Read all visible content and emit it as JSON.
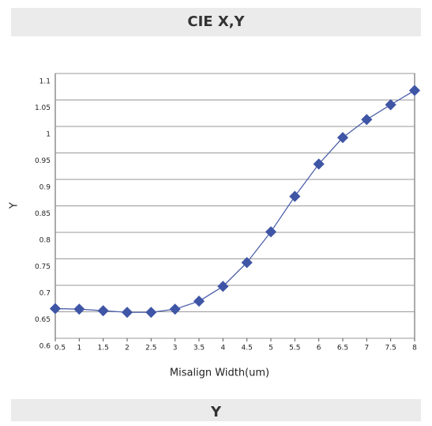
{
  "header": {
    "title": "CIE X,Y"
  },
  "chart_data": {
    "type": "line",
    "x_label": "Misalign Width(um)",
    "y_label": "Y",
    "x": [
      0.5,
      1,
      1.5,
      2,
      2.5,
      3,
      3.5,
      4,
      4.5,
      5,
      5.5,
      6,
      6.5,
      7,
      7.5,
      8
    ],
    "series": [
      {
        "name": "Y",
        "color": "#3f55a6",
        "values": [
          0.656,
          0.655,
          0.652,
          0.649,
          0.649,
          0.655,
          0.67,
          0.698,
          0.743,
          0.801,
          0.868,
          0.929,
          0.979,
          1.013,
          1.041,
          1.068
        ]
      }
    ],
    "xlim": [
      0.5,
      8
    ],
    "xticks": [
      0.5,
      1,
      1.5,
      2,
      2.5,
      3,
      3.5,
      4,
      4.5,
      5,
      5.5,
      6,
      6.5,
      7,
      7.5,
      8
    ],
    "ylim": [
      0.6,
      1.1
    ],
    "yticks": [
      0.6,
      0.65,
      0.7,
      0.75,
      0.8,
      0.85,
      0.9,
      0.95,
      1,
      1.05,
      1.1
    ],
    "grid": true
  },
  "footer": {
    "title": "Y"
  }
}
